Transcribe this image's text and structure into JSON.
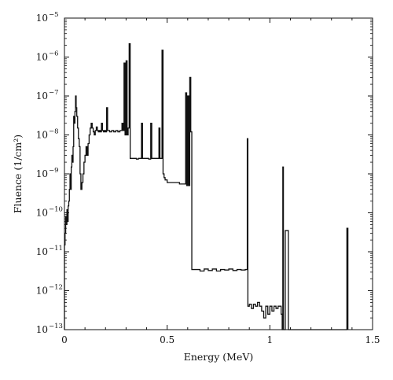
{
  "chart_data": {
    "type": "line",
    "title": "",
    "xlabel": "Energy (MeV)",
    "ylabel": "Fluence (1/cm²)",
    "xlim": [
      0,
      1.5
    ],
    "ylim": [
      1e-13,
      1e-05
    ],
    "yscale": "log",
    "grid": false,
    "line_color": "#111111",
    "x_ticks": [
      {
        "value": 0,
        "label": "0"
      },
      {
        "value": 0.5,
        "label": "0.5"
      },
      {
        "value": 1,
        "label": "1"
      },
      {
        "value": 1.5,
        "label": "1.5"
      }
    ],
    "y_ticks": [
      {
        "value": -13,
        "base": "10",
        "exp": "−13"
      },
      {
        "value": -12,
        "base": "10",
        "exp": "−12"
      },
      {
        "value": -11,
        "base": "10",
        "exp": "−11"
      },
      {
        "value": -10,
        "base": "10",
        "exp": "−10"
      },
      {
        "value": -9,
        "base": "10",
        "exp": "−9"
      },
      {
        "value": -8,
        "base": "10",
        "exp": "−8"
      },
      {
        "value": -7,
        "base": "10",
        "exp": "−7"
      },
      {
        "value": -6,
        "base": "10",
        "exp": "−6"
      },
      {
        "value": -5,
        "base": "10",
        "exp": "−5"
      }
    ],
    "series": [
      {
        "values": [
          [
            0.0,
            1e-13
          ],
          [
            0.0,
            1.5e-11
          ],
          [
            0.003,
            3e-11
          ],
          [
            0.006,
            8e-11
          ],
          [
            0.009,
            5e-11
          ],
          [
            0.012,
            1.2e-10
          ],
          [
            0.015,
            6e-11
          ],
          [
            0.018,
            1.5e-10
          ],
          [
            0.021,
            2e-10
          ],
          [
            0.024,
            4e-10
          ],
          [
            0.027,
            1e-09
          ],
          [
            0.03,
            4e-10
          ],
          [
            0.033,
            1.5e-09
          ],
          [
            0.036,
            3e-09
          ],
          [
            0.039,
            2e-09
          ],
          [
            0.042,
            5e-09
          ],
          [
            0.045,
            3e-08
          ],
          [
            0.048,
            2e-08
          ],
          [
            0.051,
            4e-08
          ],
          [
            0.054,
            1e-07
          ],
          [
            0.057,
            5e-08
          ],
          [
            0.06,
            3e-08
          ],
          [
            0.064,
            1.5e-08
          ],
          [
            0.068,
            8e-09
          ],
          [
            0.072,
            5e-09
          ],
          [
            0.076,
            1e-09
          ],
          [
            0.08,
            4e-10
          ],
          [
            0.085,
            6e-10
          ],
          [
            0.09,
            1e-09
          ],
          [
            0.095,
            2e-09
          ],
          [
            0.1,
            3e-09
          ],
          [
            0.105,
            5e-09
          ],
          [
            0.11,
            3e-09
          ],
          [
            0.115,
            6e-09
          ],
          [
            0.12,
            1e-08
          ],
          [
            0.125,
            1.5e-08
          ],
          [
            0.13,
            2e-08
          ],
          [
            0.135,
            1.5e-08
          ],
          [
            0.14,
            1.2e-08
          ],
          [
            0.145,
            1e-08
          ],
          [
            0.15,
            1.3e-08
          ],
          [
            0.155,
            1.6e-08
          ],
          [
            0.16,
            1.3e-08
          ],
          [
            0.165,
            1.2e-08
          ],
          [
            0.17,
            1.3e-08
          ],
          [
            0.175,
            1.2e-08
          ],
          [
            0.18,
            2e-08
          ],
          [
            0.185,
            1.3e-08
          ],
          [
            0.19,
            1.2e-08
          ],
          [
            0.195,
            1.3e-08
          ],
          [
            0.2,
            1.2e-08
          ],
          [
            0.205,
            5e-08
          ],
          [
            0.21,
            1.3e-08
          ],
          [
            0.22,
            1.2e-08
          ],
          [
            0.23,
            1.3e-08
          ],
          [
            0.24,
            1.2e-08
          ],
          [
            0.25,
            1.3e-08
          ],
          [
            0.26,
            1.2e-08
          ],
          [
            0.27,
            1.3e-08
          ],
          [
            0.28,
            2e-08
          ],
          [
            0.285,
            1.3e-08
          ],
          [
            0.29,
            7e-07
          ],
          [
            0.295,
            1e-08
          ],
          [
            0.3,
            8e-07
          ],
          [
            0.305,
            1e-08
          ],
          [
            0.31,
            1.5e-08
          ],
          [
            0.315,
            2.2e-06
          ],
          [
            0.32,
            2.5e-09
          ],
          [
            0.34,
            2.5e-09
          ],
          [
            0.35,
            2.4e-09
          ],
          [
            0.36,
            2.5e-09
          ],
          [
            0.37,
            2.5e-09
          ],
          [
            0.375,
            2e-08
          ],
          [
            0.38,
            2.5e-09
          ],
          [
            0.4,
            2.5e-09
          ],
          [
            0.41,
            2.4e-09
          ],
          [
            0.42,
            2e-08
          ],
          [
            0.425,
            2.5e-09
          ],
          [
            0.44,
            2.5e-09
          ],
          [
            0.455,
            2.5e-09
          ],
          [
            0.46,
            1.5e-08
          ],
          [
            0.465,
            2.5e-09
          ],
          [
            0.475,
            1.5e-06
          ],
          [
            0.48,
            1e-09
          ],
          [
            0.485,
            8e-10
          ],
          [
            0.49,
            7e-10
          ],
          [
            0.5,
            6e-10
          ],
          [
            0.52,
            6e-10
          ],
          [
            0.54,
            6e-10
          ],
          [
            0.56,
            5.5e-10
          ],
          [
            0.58,
            5.5e-10
          ],
          [
            0.59,
            1.2e-07
          ],
          [
            0.595,
            5e-10
          ],
          [
            0.6,
            1e-07
          ],
          [
            0.605,
            5e-10
          ],
          [
            0.61,
            3e-07
          ],
          [
            0.615,
            1.2e-08
          ],
          [
            0.62,
            3.5e-12
          ],
          [
            0.64,
            3.5e-12
          ],
          [
            0.66,
            3.2e-12
          ],
          [
            0.68,
            3.6e-12
          ],
          [
            0.7,
            3.3e-12
          ],
          [
            0.72,
            3.6e-12
          ],
          [
            0.74,
            3.2e-12
          ],
          [
            0.76,
            3.5e-12
          ],
          [
            0.78,
            3.4e-12
          ],
          [
            0.8,
            3.6e-12
          ],
          [
            0.82,
            3.3e-12
          ],
          [
            0.84,
            3.5e-12
          ],
          [
            0.86,
            3.4e-12
          ],
          [
            0.88,
            3.5e-12
          ],
          [
            0.89,
            8e-09
          ],
          [
            0.893,
            4e-13
          ],
          [
            0.9,
            4.5e-13
          ],
          [
            0.91,
            3.5e-13
          ],
          [
            0.92,
            4.5e-13
          ],
          [
            0.93,
            4e-13
          ],
          [
            0.94,
            5e-13
          ],
          [
            0.95,
            4e-13
          ],
          [
            0.96,
            3e-13
          ],
          [
            0.97,
            2e-13
          ],
          [
            0.98,
            4e-13
          ],
          [
            0.99,
            2.5e-13
          ],
          [
            1.0,
            4e-13
          ],
          [
            1.01,
            3e-13
          ],
          [
            1.02,
            4e-13
          ],
          [
            1.03,
            3.5e-13
          ],
          [
            1.04,
            4e-13
          ],
          [
            1.05,
            4e-13
          ],
          [
            1.055,
            2.5e-13
          ],
          [
            1.06,
            1e-13
          ],
          [
            1.063,
            1.5e-09
          ],
          [
            1.066,
            1e-13
          ],
          [
            1.075,
            1e-13
          ],
          [
            1.075,
            3.5e-11
          ],
          [
            1.09,
            3.5e-11
          ],
          [
            1.09,
            1e-13
          ],
          [
            1.37,
            1e-13
          ],
          [
            1.375,
            4e-11
          ],
          [
            1.38,
            1e-13
          ]
        ]
      }
    ]
  }
}
